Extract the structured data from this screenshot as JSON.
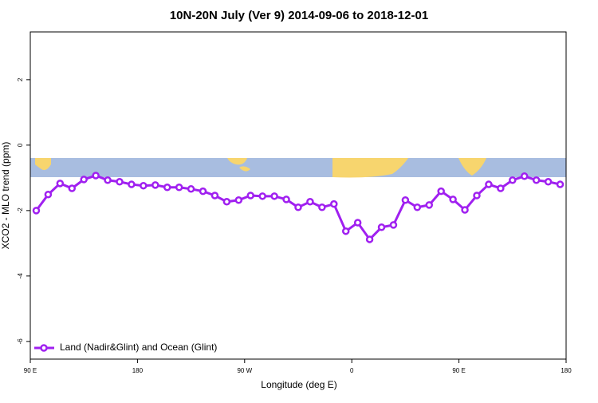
{
  "chart_data": {
    "type": "line",
    "title": "10N-20N July (Ver 9)   2014-09-06 to 2018-12-01",
    "x_label": "Longitude (deg E)",
    "y_label": "XCO2 - MLO trend (ppm)",
    "x": [
      95,
      105,
      115,
      125,
      135,
      145,
      155,
      165,
      175,
      185,
      195,
      205,
      215,
      225,
      235,
      245,
      255,
      265,
      275,
      285,
      295,
      305,
      315,
      325,
      335,
      345,
      355,
      365,
      375,
      385,
      395,
      405,
      415,
      425,
      435,
      445,
      455,
      465,
      475,
      485,
      495,
      505,
      515,
      525,
      535
    ],
    "series": [
      {
        "name": "Land (Nadir&Glint) and Ocean (Glint)",
        "color": "#a020f0",
        "values": [
          -2.0,
          -1.51,
          -1.17,
          -1.32,
          -1.05,
          -0.93,
          -1.07,
          -1.12,
          -1.2,
          -1.24,
          -1.22,
          -1.29,
          -1.29,
          -1.34,
          -1.41,
          -1.54,
          -1.73,
          -1.68,
          -1.54,
          -1.56,
          -1.56,
          -1.66,
          -1.9,
          -1.73,
          -1.9,
          -1.8,
          -2.63,
          -2.37,
          -2.88,
          -2.51,
          -2.44,
          -1.68,
          -1.9,
          -1.83,
          -1.41,
          -1.66,
          -1.98,
          -1.54,
          -1.2,
          -1.32,
          -1.07,
          -0.95,
          -1.07,
          -1.12,
          -1.2
        ]
      }
    ],
    "xlim": [
      90,
      540
    ],
    "xticks": [
      {
        "value": 90,
        "label": "90 E"
      },
      180,
      {
        "value": 270,
        "label": "90 W"
      },
      {
        "value": 360,
        "label": "0"
      },
      {
        "value": 450,
        "label": "90 E"
      },
      {
        "value": 540,
        "label": "180"
      }
    ],
    "ylim": [
      -6.54,
      3.46
    ],
    "yticks": [
      2,
      0,
      -2,
      -4,
      -6
    ],
    "legend": "bottom-left"
  }
}
